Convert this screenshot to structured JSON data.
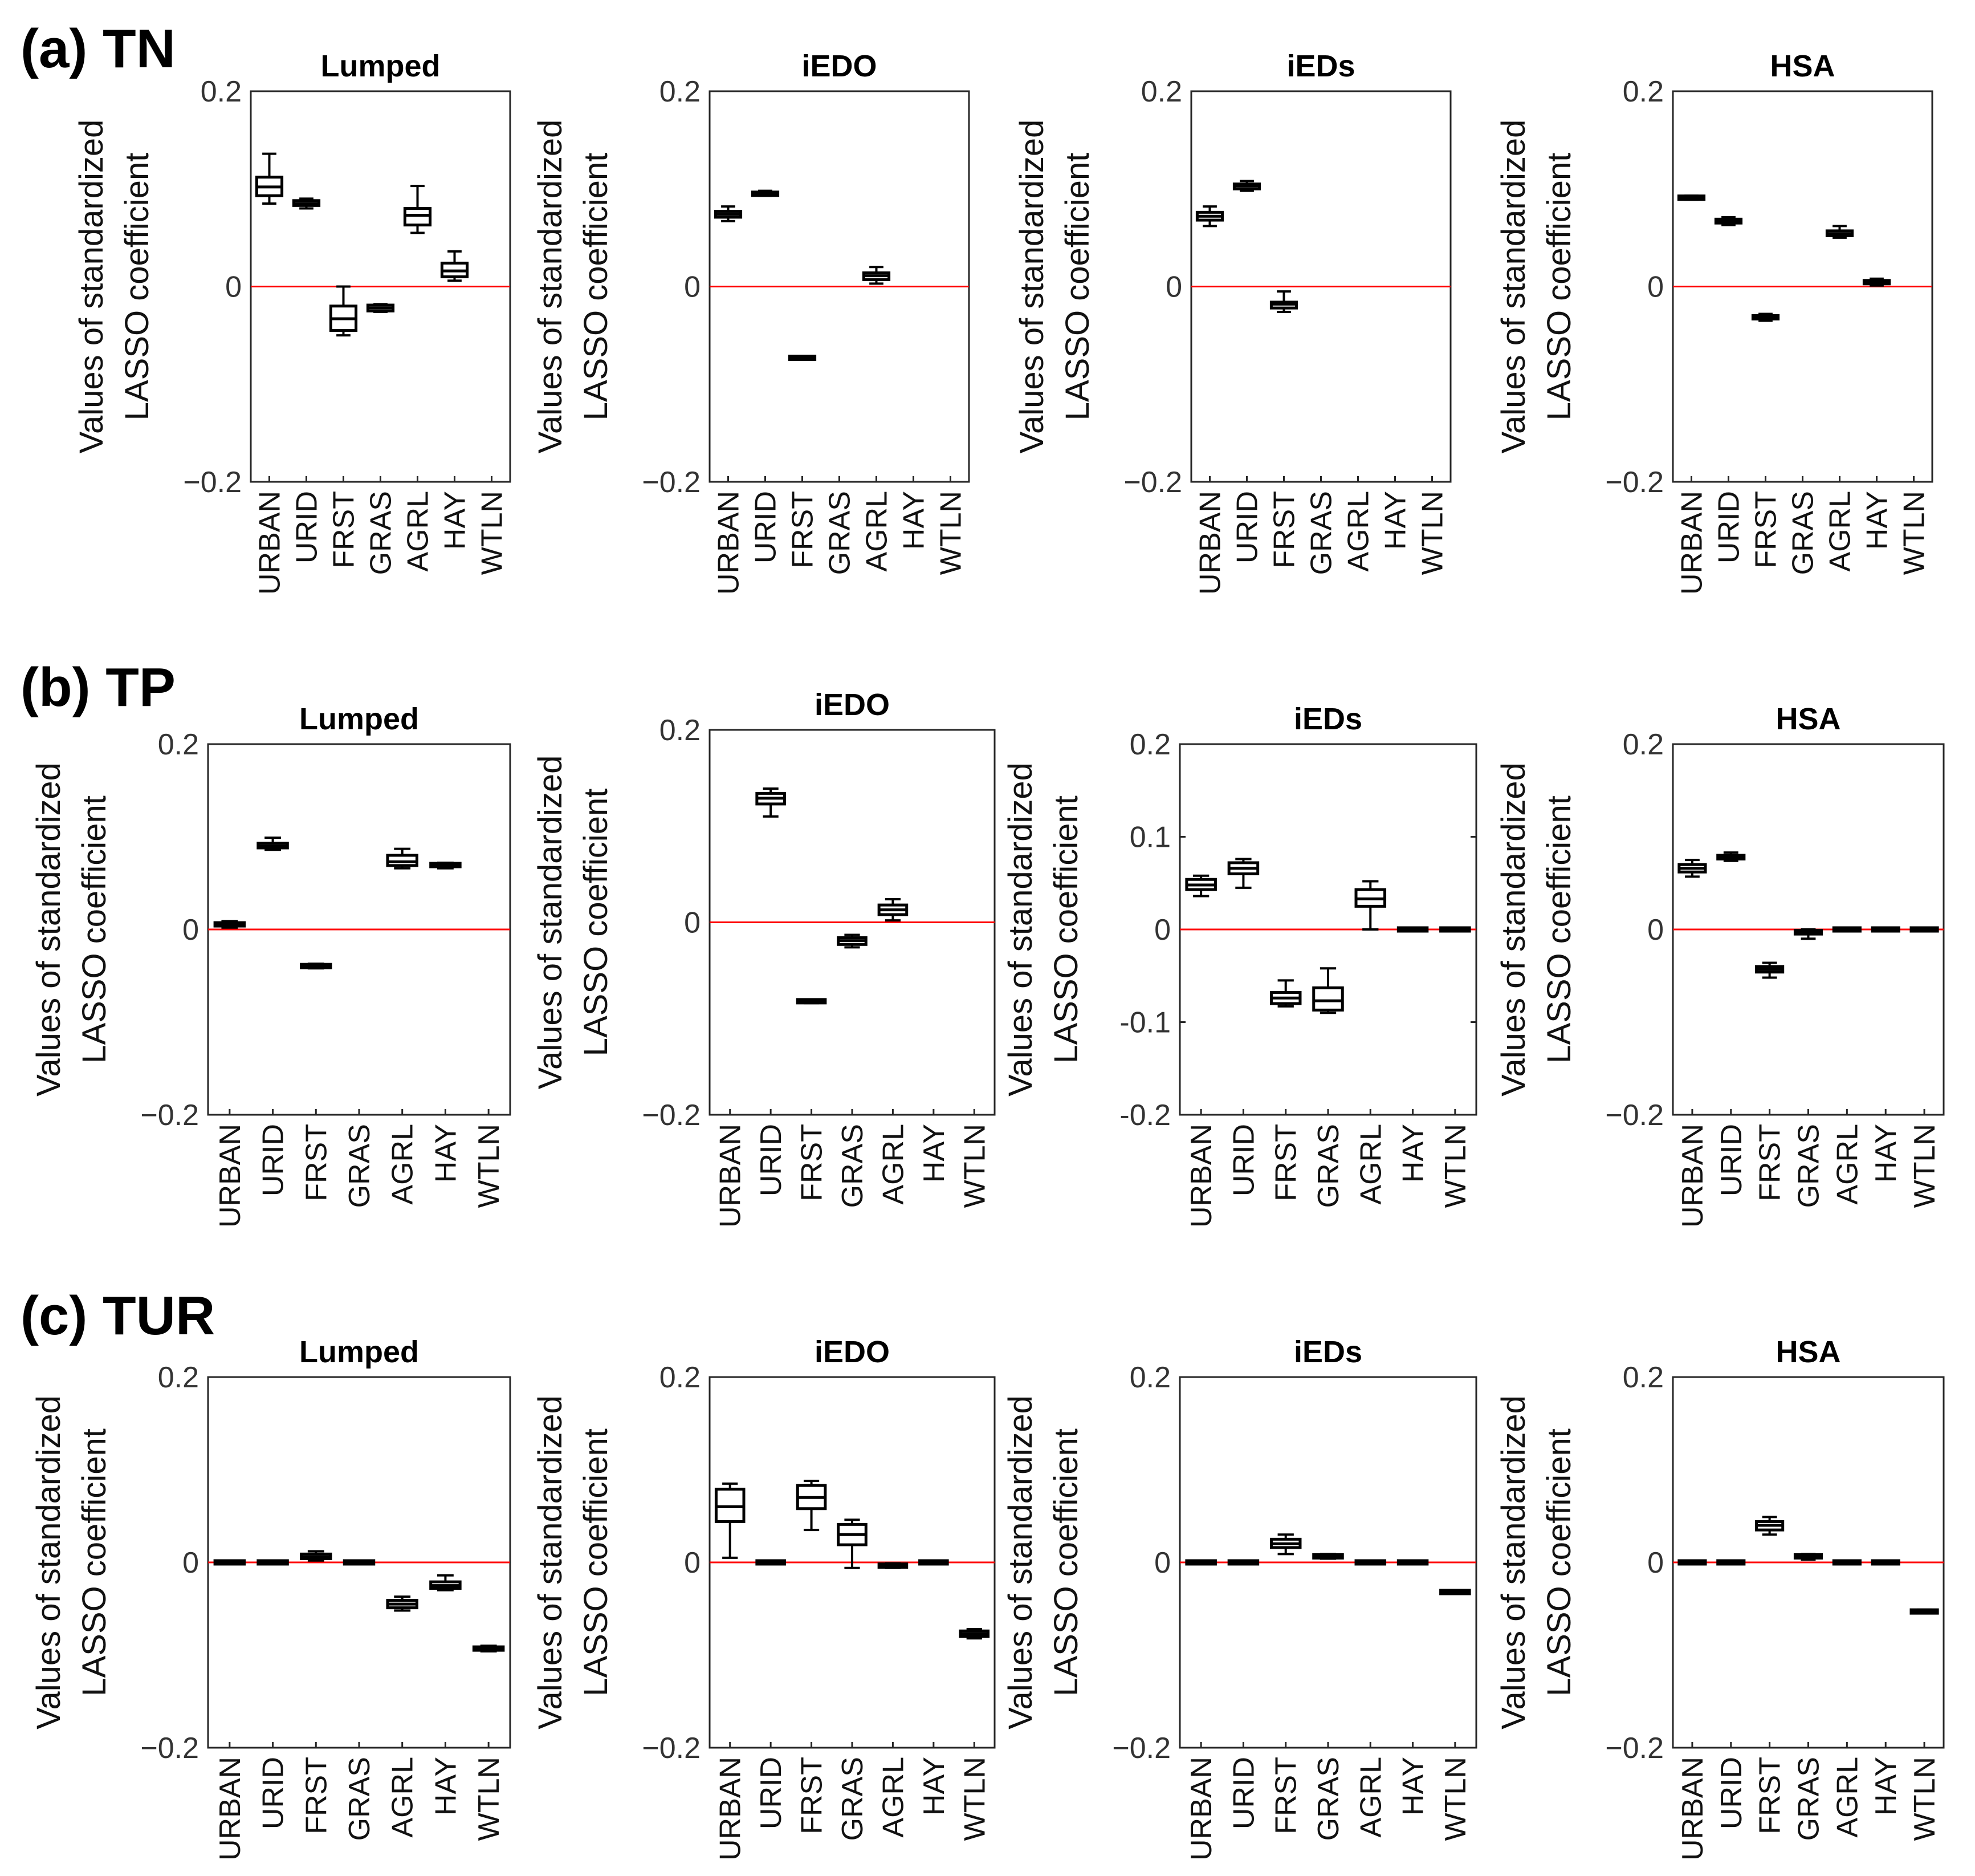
{
  "figure": {
    "row_labels": [
      "(a) TN",
      "(b) TP",
      "(c) TUR"
    ]
  },
  "chart_data": [
    {
      "type": "box",
      "group": "(a) TN",
      "title": "Lumped",
      "ylabel_line1": "Values of standardized",
      "ylabel_line2": "LASSO coefficient",
      "ylim": [
        -0.2,
        0.2
      ],
      "yticks": [
        -0.2,
        0,
        0.2
      ],
      "ytick_labels": [
        "−0.2",
        "0",
        "0.2"
      ],
      "categories": [
        "URBAN",
        "URID",
        "FRST",
        "GRAS",
        "AGRL",
        "HAY",
        "WTLN"
      ],
      "boxes": [
        {
          "min": 0.085,
          "q1": 0.093,
          "median": 0.102,
          "q3": 0.112,
          "max": 0.136
        },
        {
          "min": 0.08,
          "q1": 0.083,
          "median": 0.085,
          "q3": 0.088,
          "max": 0.09
        },
        {
          "min": -0.05,
          "q1": -0.045,
          "median": -0.033,
          "q3": -0.02,
          "max": 0.0
        },
        {
          "min": -0.026,
          "q1": -0.025,
          "median": -0.022,
          "q3": -0.019,
          "max": -0.018
        },
        {
          "min": 0.055,
          "q1": 0.063,
          "median": 0.073,
          "q3": 0.08,
          "max": 0.103
        },
        {
          "min": 0.006,
          "q1": 0.01,
          "median": 0.016,
          "q3": 0.024,
          "max": 0.036
        },
        null
      ]
    },
    {
      "type": "box",
      "group": "(a) TN",
      "title": "iEDO",
      "ylabel_line1": "Values of standardized",
      "ylabel_line2": "LASSO coefficient",
      "ylim": [
        -0.2,
        0.2
      ],
      "yticks": [
        -0.2,
        0,
        0.2
      ],
      "ytick_labels": [
        "−0.2",
        "0",
        "0.2"
      ],
      "categories": [
        "URBAN",
        "URID",
        "FRST",
        "GRAS",
        "AGRL",
        "HAY",
        "WTLN"
      ],
      "boxes": [
        {
          "min": 0.067,
          "q1": 0.071,
          "median": 0.074,
          "q3": 0.077,
          "max": 0.082
        },
        {
          "min": 0.093,
          "q1": 0.094,
          "median": 0.095,
          "q3": 0.096,
          "max": 0.098
        },
        {
          "min": -0.074,
          "q1": -0.074,
          "median": -0.073,
          "q3": -0.072,
          "max": -0.072
        },
        null,
        {
          "min": 0.003,
          "q1": 0.007,
          "median": 0.011,
          "q3": 0.014,
          "max": 0.02
        },
        null,
        null
      ]
    },
    {
      "type": "box",
      "group": "(a) TN",
      "title": "iEDs",
      "ylabel_line1": "Values of standardized",
      "ylabel_line2": "LASSO coefficient",
      "ylim": [
        -0.2,
        0.2
      ],
      "yticks": [
        -0.2,
        0,
        0.2
      ],
      "ytick_labels": [
        "−0.2",
        "0",
        "0.2"
      ],
      "categories": [
        "URBAN",
        "URID",
        "FRST",
        "GRAS",
        "AGRL",
        "HAY",
        "WTLN"
      ],
      "boxes": [
        {
          "min": 0.062,
          "q1": 0.068,
          "median": 0.072,
          "q3": 0.076,
          "max": 0.082
        },
        {
          "min": 0.098,
          "q1": 0.1,
          "median": 0.103,
          "q3": 0.105,
          "max": 0.108
        },
        {
          "min": -0.026,
          "q1": -0.022,
          "median": -0.018,
          "q3": -0.016,
          "max": -0.005
        },
        null,
        null,
        null,
        null
      ]
    },
    {
      "type": "box",
      "group": "(a) TN",
      "title": "HSA",
      "ylabel_line1": "Values of standardized",
      "ylabel_line2": "LASSO coefficient",
      "ylim": [
        -0.2,
        0.2
      ],
      "yticks": [
        -0.2,
        0,
        0.2
      ],
      "ytick_labels": [
        "−0.2",
        "0",
        "0.2"
      ],
      "categories": [
        "URBAN",
        "URID",
        "FRST",
        "GRAS",
        "AGRL",
        "HAY",
        "WTLN"
      ],
      "boxes": [
        {
          "min": 0.089,
          "q1": 0.09,
          "median": 0.091,
          "q3": 0.092,
          "max": 0.093
        },
        {
          "min": 0.063,
          "q1": 0.065,
          "median": 0.067,
          "q3": 0.069,
          "max": 0.071
        },
        {
          "min": -0.035,
          "q1": -0.033,
          "median": -0.031,
          "q3": -0.03,
          "max": -0.028
        },
        null,
        {
          "min": 0.05,
          "q1": 0.052,
          "median": 0.054,
          "q3": 0.057,
          "max": 0.062
        },
        {
          "min": 0.001,
          "q1": 0.003,
          "median": 0.004,
          "q3": 0.006,
          "max": 0.008
        },
        null
      ]
    },
    {
      "type": "box",
      "group": "(b) TP",
      "title": "Lumped",
      "ylabel_line1": "Values of standardized",
      "ylabel_line2": "LASSO coefficient",
      "ylim": [
        -0.2,
        0.2
      ],
      "yticks": [
        -0.2,
        0,
        0.2
      ],
      "ytick_labels": [
        "−0.2",
        "0",
        "0.2"
      ],
      "categories": [
        "URBAN",
        "URID",
        "FRST",
        "GRAS",
        "AGRL",
        "HAY",
        "WTLN"
      ],
      "boxes": [
        {
          "min": 0.002,
          "q1": 0.004,
          "median": 0.006,
          "q3": 0.007,
          "max": 0.009
        },
        {
          "min": 0.086,
          "q1": 0.088,
          "median": 0.09,
          "q3": 0.093,
          "max": 0.099
        },
        {
          "min": -0.042,
          "q1": -0.041,
          "median": -0.04,
          "q3": -0.038,
          "max": -0.037
        },
        null,
        {
          "min": 0.066,
          "q1": 0.069,
          "median": 0.073,
          "q3": 0.08,
          "max": 0.087
        },
        {
          "min": 0.066,
          "q1": 0.068,
          "median": 0.069,
          "q3": 0.071,
          "max": 0.072
        },
        null
      ]
    },
    {
      "type": "box",
      "group": "(b) TP",
      "title": "iEDO",
      "ylabel_line1": "Values of standardized",
      "ylabel_line2": "LASSO coefficient",
      "ylim": [
        -0.2,
        0.2
      ],
      "yticks": [
        -0.2,
        0,
        0.2
      ],
      "ytick_labels": [
        "−0.2",
        "0",
        "0.2"
      ],
      "categories": [
        "URBAN",
        "URID",
        "FRST",
        "GRAS",
        "AGRL",
        "HAY",
        "WTLN"
      ],
      "boxes": [
        null,
        {
          "min": 0.11,
          "q1": 0.123,
          "median": 0.129,
          "q3": 0.134,
          "max": 0.139
        },
        {
          "min": -0.084,
          "q1": -0.083,
          "median": -0.082,
          "q3": -0.081,
          "max": -0.08
        },
        {
          "min": -0.026,
          "q1": -0.023,
          "median": -0.019,
          "q3": -0.016,
          "max": -0.013
        },
        {
          "min": 0.002,
          "q1": 0.008,
          "median": 0.013,
          "q3": 0.018,
          "max": 0.024
        },
        null,
        null
      ]
    },
    {
      "type": "box",
      "group": "(b) TP",
      "title": "iEDs",
      "ylabel_line1": "Values of standardized",
      "ylabel_line2": "LASSO coefficient",
      "ylim": [
        -0.2,
        0.2
      ],
      "yticks": [
        -0.2,
        -0.1,
        0,
        0.1,
        0.2
      ],
      "ytick_labels": [
        "-0.2",
        "-0.1",
        "0",
        "0.1",
        "0.2"
      ],
      "categories": [
        "URBAN",
        "URID",
        "FRST",
        "GRAS",
        "AGRL",
        "HAY",
        "WTLN"
      ],
      "boxes": [
        {
          "min": 0.036,
          "q1": 0.043,
          "median": 0.048,
          "q3": 0.054,
          "max": 0.058
        },
        {
          "min": 0.045,
          "q1": 0.06,
          "median": 0.066,
          "q3": 0.072,
          "max": 0.076
        },
        {
          "min": -0.083,
          "q1": -0.08,
          "median": -0.074,
          "q3": -0.068,
          "max": -0.055
        },
        {
          "min": -0.09,
          "q1": -0.087,
          "median": -0.077,
          "q3": -0.063,
          "max": -0.042
        },
        {
          "min": 0.0,
          "q1": 0.025,
          "median": 0.033,
          "q3": 0.043,
          "max": 0.052
        },
        {
          "min": -0.001,
          "q1": 0.0,
          "median": 0.0,
          "q3": 0.0,
          "max": 0.001
        },
        {
          "min": -0.001,
          "q1": 0.0,
          "median": 0.0,
          "q3": 0.0,
          "max": 0.001
        }
      ]
    },
    {
      "type": "box",
      "group": "(b) TP",
      "title": "HSA",
      "ylabel_line1": "Values of standardized",
      "ylabel_line2": "LASSO coefficient",
      "ylim": [
        -0.2,
        0.2
      ],
      "yticks": [
        -0.2,
        0,
        0.2
      ],
      "ytick_labels": [
        "−0.2",
        "0",
        "0.2"
      ],
      "categories": [
        "URBAN",
        "URID",
        "FRST",
        "GRAS",
        "AGRL",
        "HAY",
        "WTLN"
      ],
      "boxes": [
        {
          "min": 0.057,
          "q1": 0.062,
          "median": 0.066,
          "q3": 0.07,
          "max": 0.075
        },
        {
          "min": 0.074,
          "q1": 0.076,
          "median": 0.078,
          "q3": 0.08,
          "max": 0.083
        },
        {
          "min": -0.052,
          "q1": -0.046,
          "median": -0.043,
          "q3": -0.04,
          "max": -0.036
        },
        {
          "min": -0.01,
          "q1": -0.005,
          "median": -0.003,
          "q3": -0.001,
          "max": 0.0
        },
        {
          "min": -0.001,
          "q1": 0.0,
          "median": 0.0,
          "q3": 0.0,
          "max": 0.001
        },
        {
          "min": -0.001,
          "q1": 0.0,
          "median": 0.0,
          "q3": 0.0,
          "max": 0.001
        },
        {
          "min": -0.001,
          "q1": 0.0,
          "median": 0.0,
          "q3": 0.0,
          "max": 0.001
        }
      ]
    },
    {
      "type": "box",
      "group": "(c) TUR",
      "title": "Lumped",
      "ylabel_line1": "Values of standardized",
      "ylabel_line2": "LASSO coefficient",
      "ylim": [
        -0.2,
        0.2
      ],
      "yticks": [
        -0.2,
        0,
        0.2
      ],
      "ytick_labels": [
        "−0.2",
        "0",
        "0.2"
      ],
      "categories": [
        "URBAN",
        "URID",
        "FRST",
        "GRAS",
        "AGRL",
        "HAY",
        "WTLN"
      ],
      "boxes": [
        {
          "min": -0.001,
          "q1": 0.0,
          "median": 0.0,
          "q3": 0.0,
          "max": 0.001
        },
        {
          "min": -0.001,
          "q1": 0.0,
          "median": 0.0,
          "q3": 0.0,
          "max": 0.001
        },
        {
          "min": 0.002,
          "q1": 0.004,
          "median": 0.006,
          "q3": 0.009,
          "max": 0.012
        },
        {
          "min": -0.001,
          "q1": 0.0,
          "median": 0.0,
          "q3": 0.0,
          "max": 0.001
        },
        {
          "min": -0.052,
          "q1": -0.049,
          "median": -0.045,
          "q3": -0.041,
          "max": -0.037
        },
        {
          "min": -0.03,
          "q1": -0.028,
          "median": -0.025,
          "q3": -0.021,
          "max": -0.014
        },
        {
          "min": -0.096,
          "q1": -0.094,
          "median": -0.093,
          "q3": -0.092,
          "max": -0.09
        }
      ]
    },
    {
      "type": "box",
      "group": "(c) TUR",
      "title": "iEDO",
      "ylabel_line1": "Values of standardized",
      "ylabel_line2": "LASSO coefficient",
      "ylim": [
        -0.2,
        0.2
      ],
      "yticks": [
        -0.2,
        0,
        0.2
      ],
      "ytick_labels": [
        "−0.2",
        "0",
        "0.2"
      ],
      "categories": [
        "URBAN",
        "URID",
        "FRST",
        "GRAS",
        "AGRL",
        "HAY",
        "WTLN"
      ],
      "boxes": [
        {
          "min": 0.005,
          "q1": 0.044,
          "median": 0.06,
          "q3": 0.079,
          "max": 0.085
        },
        {
          "min": -0.001,
          "q1": 0.0,
          "median": 0.0,
          "q3": 0.0,
          "max": 0.001
        },
        {
          "min": 0.035,
          "q1": 0.058,
          "median": 0.07,
          "q3": 0.083,
          "max": 0.088
        },
        {
          "min": -0.006,
          "q1": 0.019,
          "median": 0.03,
          "q3": 0.041,
          "max": 0.046
        },
        {
          "min": -0.006,
          "q1": -0.005,
          "median": -0.003,
          "q3": -0.002,
          "max": -0.001
        },
        {
          "min": -0.001,
          "q1": 0.0,
          "median": 0.0,
          "q3": 0.0,
          "max": 0.001
        },
        {
          "min": -0.082,
          "q1": -0.08,
          "median": -0.077,
          "q3": -0.074,
          "max": -0.072
        }
      ]
    },
    {
      "type": "box",
      "group": "(c) TUR",
      "title": "iEDs",
      "ylabel_line1": "Values of standardized",
      "ylabel_line2": "LASSO coefficient",
      "ylim": [
        -0.2,
        0.2
      ],
      "yticks": [
        -0.2,
        0,
        0.2
      ],
      "ytick_labels": [
        "−0.2",
        "0",
        "0.2"
      ],
      "categories": [
        "URBAN",
        "URID",
        "FRST",
        "GRAS",
        "AGRL",
        "HAY",
        "WTLN"
      ],
      "boxes": [
        {
          "min": -0.001,
          "q1": 0.0,
          "median": 0.0,
          "q3": 0.0,
          "max": 0.001
        },
        {
          "min": -0.001,
          "q1": 0.0,
          "median": 0.0,
          "q3": 0.0,
          "max": 0.001
        },
        {
          "min": 0.009,
          "q1": 0.016,
          "median": 0.02,
          "q3": 0.025,
          "max": 0.03
        },
        {
          "min": 0.004,
          "q1": 0.005,
          "median": 0.006,
          "q3": 0.008,
          "max": 0.009
        },
        {
          "min": -0.001,
          "q1": 0.0,
          "median": 0.0,
          "q3": 0.0,
          "max": 0.001
        },
        {
          "min": -0.001,
          "q1": 0.0,
          "median": 0.0,
          "q3": 0.0,
          "max": 0.001
        },
        {
          "min": -0.034,
          "q1": -0.033,
          "median": -0.032,
          "q3": -0.031,
          "max": -0.03
        }
      ]
    },
    {
      "type": "box",
      "group": "(c) TUR",
      "title": "HSA",
      "ylabel_line1": "Values of standardized",
      "ylabel_line2": "LASSO coefficient",
      "ylim": [
        -0.2,
        0.2
      ],
      "yticks": [
        -0.2,
        0,
        0.2
      ],
      "ytick_labels": [
        "−0.2",
        "0",
        "0.2"
      ],
      "categories": [
        "URBAN",
        "URID",
        "FRST",
        "GRAS",
        "AGRL",
        "HAY",
        "WTLN"
      ],
      "boxes": [
        {
          "min": -0.001,
          "q1": 0.0,
          "median": 0.0,
          "q3": 0.0,
          "max": 0.001
        },
        {
          "min": -0.001,
          "q1": 0.0,
          "median": 0.0,
          "q3": 0.0,
          "max": 0.001
        },
        {
          "min": 0.03,
          "q1": 0.035,
          "median": 0.04,
          "q3": 0.044,
          "max": 0.049
        },
        {
          "min": 0.003,
          "q1": 0.005,
          "median": 0.006,
          "q3": 0.008,
          "max": 0.009
        },
        {
          "min": -0.001,
          "q1": 0.0,
          "median": 0.0,
          "q3": 0.0,
          "max": 0.001
        },
        {
          "min": -0.001,
          "q1": 0.0,
          "median": 0.0,
          "q3": 0.0,
          "max": 0.001
        },
        {
          "min": -0.055,
          "q1": -0.054,
          "median": -0.053,
          "q3": -0.052,
          "max": -0.051
        }
      ]
    }
  ],
  "colors": {
    "zero_line": "#ff0000",
    "box_stroke": "#000000",
    "axis": "#262626"
  }
}
